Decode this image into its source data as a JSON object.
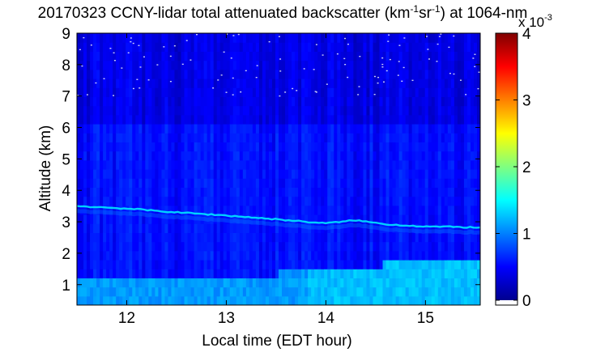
{
  "chart_data": {
    "type": "heatmap",
    "title": {
      "prefix": "20170323 CCNY-lidar total attenuated backscatter (km",
      "sup1": "-1",
      "mid": "sr",
      "sup2": "-1",
      "suffix": ") at 1064-nm"
    },
    "xlabel": "Local time (EDT hour)",
    "ylabel": "Altitude (km)",
    "xlim": [
      11.5,
      15.55
    ],
    "ylim": [
      0.35,
      9
    ],
    "x_ticks": [
      12,
      13,
      14,
      15
    ],
    "y_ticks": [
      1,
      2,
      3,
      4,
      5,
      6,
      7,
      8,
      9
    ],
    "colorbar": {
      "range": [
        0,
        4
      ],
      "ticks": [
        0,
        1,
        2,
        3,
        4
      ],
      "multiplier_label": "x 10",
      "multiplier_exponent": "-3",
      "colormap": "jet"
    },
    "features": {
      "aerosol_layer_top_km": {
        "x": [
          11.5,
          12.0,
          12.5,
          13.0,
          13.5,
          13.8,
          14.0,
          14.3,
          14.6,
          15.0,
          15.55
        ],
        "y": [
          3.5,
          3.42,
          3.3,
          3.2,
          3.08,
          3.0,
          2.95,
          3.05,
          2.92,
          2.85,
          2.82
        ]
      },
      "boundary_layer_top_km": {
        "x": [
          11.5,
          12.5,
          13.5,
          13.8,
          14.5,
          15.55
        ],
        "y": [
          1.05,
          1.1,
          1.2,
          1.45,
          1.5,
          1.55
        ]
      },
      "background_value": 0.55,
      "layer_value": 1.45,
      "near_surface_value": 1.1
    }
  }
}
